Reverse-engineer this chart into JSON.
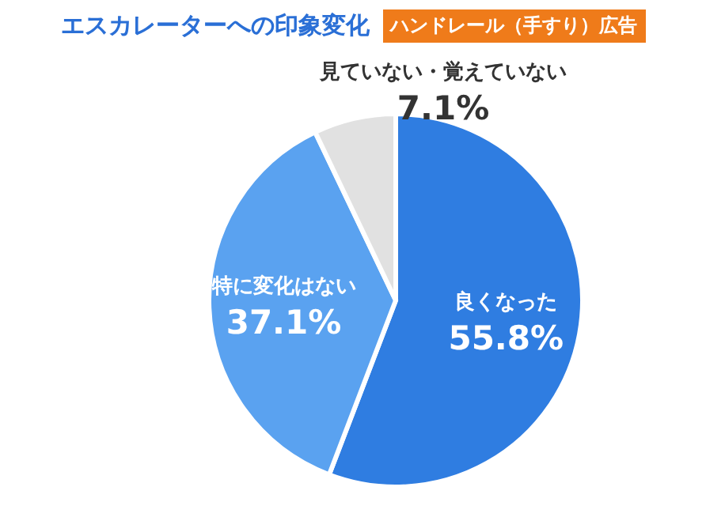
{
  "chart_data": {
    "type": "pie",
    "title": "エスカレーターへの印象変化",
    "subtitle": "ハンドレール（手すり）広告",
    "categories": [
      "良くなった",
      "特に変化はない",
      "見ていない・覚えていない"
    ],
    "values": [
      55.8,
      37.1,
      7.1
    ],
    "colors": [
      "#2f7de1",
      "#5aa2f0",
      "#e1e1e1"
    ],
    "value_labels": [
      "55.8%",
      "37.1%",
      "7.1%"
    ]
  }
}
